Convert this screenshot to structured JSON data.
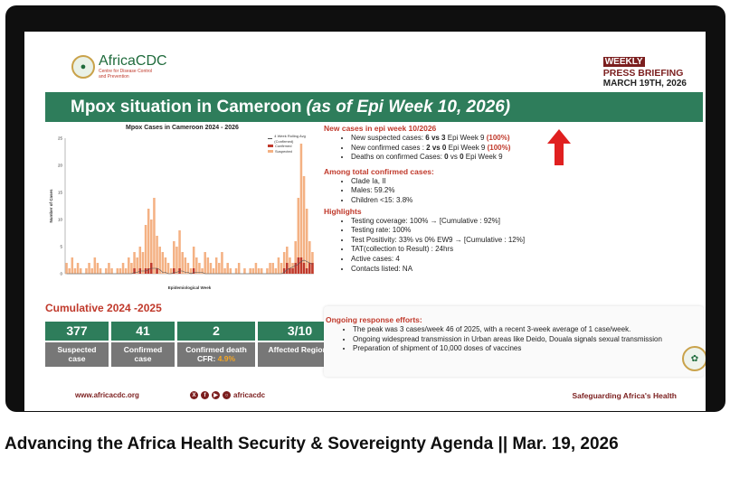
{
  "slide": {
    "logo": {
      "name": "AfricaCDC",
      "sub": "Centre for Disease Control and Prevention"
    },
    "briefing": {
      "tag": "WEEKLY",
      "line2": "PRESS BRIEFING",
      "date": "MARCH 19TH, 2026"
    },
    "title_main": "Mpox situation in Cameroon",
    "title_italic": "(as of Epi Week 10, 2026)",
    "new_cases": {
      "heading": "New cases in epi week 10/2026",
      "suspected": {
        "text": "New suspected cases: ",
        "value": "6 vs 3",
        "rest": " Epi Week 9 ",
        "pct": "(100%)"
      },
      "confirmed": {
        "text": "New confirmed cases : ",
        "value": "2 vs 0",
        "rest": " Epi Week 9 ",
        "pct": "(100%)"
      },
      "deaths": {
        "text": "Deaths on confirmed Cases: ",
        "value": "0",
        "mid": " vs ",
        "value2": "0",
        "rest": " Epi Week 9"
      }
    },
    "among": {
      "heading": "Among total confirmed cases:",
      "items": [
        "Clade  Ia, II",
        "Males: 59.2%",
        "Children <15: 3.8%"
      ]
    },
    "highlights": {
      "heading": "Highlights",
      "items": [
        "Testing coverage: 100%   →   [Cumulative : 92%]",
        "Testing rate: 100%",
        "Test Positivity: 33% vs 0% EW9  →   [Cumulative : 12%]",
        "TAT(collection to Result) : 24hrs",
        "Active cases: 4",
        "Contacts listed: NA"
      ]
    },
    "cumulative_title": "Cumulative 2024 -2025",
    "stats": [
      {
        "value": "377",
        "label1": "Suspected",
        "label2": "case"
      },
      {
        "value": "41",
        "label1": "Confirmed",
        "label2": "case"
      },
      {
        "value": "2",
        "label1": "Confirmed death",
        "label2": "CFR: ",
        "label2_hl": "4.9%"
      },
      {
        "value": "3/10",
        "label1": "Affected Regions",
        "label2": ""
      }
    ],
    "response": {
      "heading": "Ongoing response efforts:",
      "items": [
        "The peak was 3 cases/week 46 of 2025, with a recent 3-week average of 1 case/week.",
        "Ongoing widespread transmission in Urban areas like Deido, Douala signals sexual transmission",
        "Preparation of shipment of 10,000 doses of vaccines"
      ]
    },
    "footer": {
      "url": "www.africacdc.org",
      "handle": "africacdc",
      "tagline": "Safeguarding Africa's Health"
    },
    "colors": {
      "green": "#2e7d5b",
      "red": "#c0392b",
      "maroon": "#7b1e1e",
      "suspected": "#f4b183",
      "confirmed": "#c0392b"
    }
  },
  "video_title": "Advancing the Africa Health Security & Sovereignty Agenda || Mar. 19, 2026",
  "chart_data": {
    "type": "bar",
    "title": "Mpox Cases in Cameroon 2024 - 2026",
    "xlabel": "Epidemiological Week",
    "ylabel": "Number of Cases",
    "ylim": [
      0,
      25
    ],
    "yticks": [
      0,
      5,
      10,
      15,
      20,
      25
    ],
    "legend": [
      "4 Week Rolling Avg (Confirmed)",
      "Confirmed",
      "Suspected"
    ],
    "series": [
      {
        "name": "Suspected",
        "values": [
          2,
          1,
          3,
          1,
          2,
          1,
          0,
          1,
          2,
          1,
          3,
          2,
          1,
          0,
          1,
          2,
          1,
          0,
          1,
          1,
          2,
          1,
          3,
          2,
          4,
          3,
          5,
          4,
          9,
          12,
          10,
          14,
          7,
          5,
          4,
          3,
          2,
          1,
          6,
          5,
          8,
          4,
          3,
          2,
          1,
          5,
          3,
          2,
          1,
          4,
          3,
          2,
          1,
          3,
          2,
          4,
          1,
          2,
          1,
          0,
          1,
          2,
          0,
          1,
          0,
          1,
          1,
          2,
          1,
          1,
          0,
          1,
          2,
          2,
          1,
          3,
          2,
          4,
          5,
          3,
          2,
          6,
          14,
          24,
          18,
          12,
          6,
          4
        ]
      },
      {
        "name": "Confirmed",
        "values": [
          0,
          0,
          0,
          0,
          0,
          0,
          0,
          0,
          0,
          0,
          0,
          0,
          0,
          0,
          0,
          0,
          0,
          0,
          0,
          0,
          0,
          0,
          0,
          0,
          1,
          0,
          1,
          0,
          1,
          1,
          2,
          0,
          1,
          0,
          0,
          0,
          0,
          0,
          1,
          0,
          1,
          0,
          0,
          0,
          0,
          1,
          0,
          0,
          0,
          0,
          0,
          0,
          0,
          0,
          0,
          0,
          0,
          0,
          0,
          0,
          0,
          0,
          0,
          0,
          0,
          0,
          0,
          0,
          0,
          0,
          0,
          0,
          0,
          0,
          0,
          0,
          0,
          1,
          2,
          1,
          1,
          2,
          3,
          3,
          2,
          1,
          2,
          2
        ]
      }
    ]
  }
}
